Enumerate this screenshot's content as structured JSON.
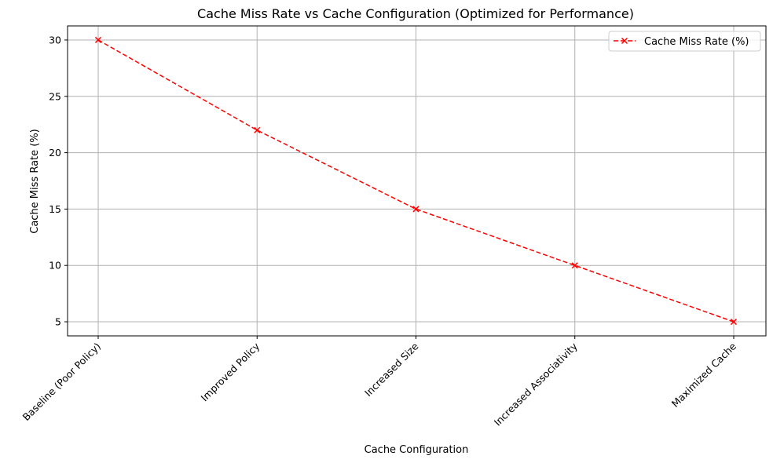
{
  "chart_data": {
    "type": "line",
    "title": "Cache Miss Rate vs Cache Configuration (Optimized for Performance)",
    "xlabel": "Cache Configuration",
    "ylabel": "Cache Miss Rate (%)",
    "categories": [
      "Baseline (Poor Policy)",
      "Improved Policy",
      "Increased Size",
      "Increased Associativity",
      "Maximized Cache"
    ],
    "series": [
      {
        "name": "Cache Miss Rate (%)",
        "values": [
          30,
          22,
          15,
          10,
          5
        ],
        "color": "#ff0000",
        "line_style": "dashed",
        "marker": "x"
      }
    ],
    "ylim": [
      3.75,
      31.25
    ],
    "yticks": [
      5,
      10,
      15,
      20,
      25,
      30
    ],
    "ytick_labels": [
      "5",
      "10",
      "15",
      "20",
      "25",
      "30"
    ],
    "grid": true,
    "legend_position": "top-right"
  }
}
